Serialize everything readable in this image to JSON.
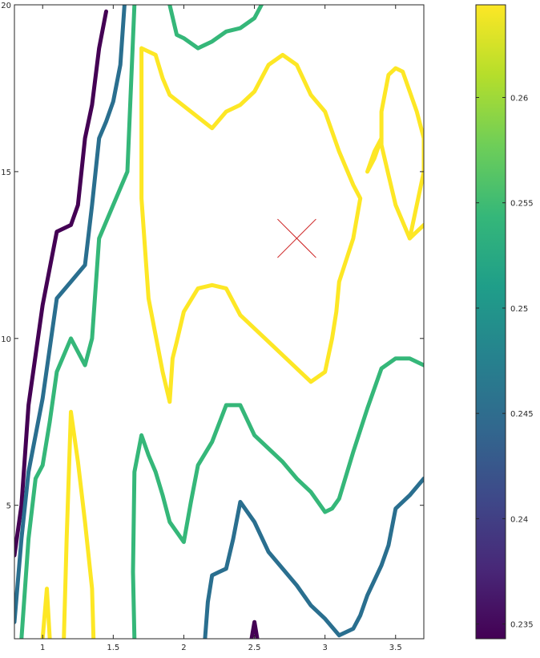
{
  "colors": {
    "c0235": "#440154",
    "c0245": "#2a6f8f",
    "c0255": "#35b779",
    "c0265": "#fde725",
    "marker": "#cc1f1f"
  },
  "chart_data": {
    "type": "contour",
    "xlim": [
      0.8,
      3.7
    ],
    "ylim": [
      1,
      20
    ],
    "xticks": [
      "1",
      "1.5",
      "2",
      "2.5",
      "3",
      "3.5"
    ],
    "xtick_values": [
      1,
      1.5,
      2,
      2.5,
      3,
      3.5
    ],
    "yticks": [
      "5",
      "10",
      "15",
      "20"
    ],
    "ytick_values": [
      5,
      10,
      15,
      20
    ],
    "grid": false,
    "colorbar": {
      "range": [
        0.2343,
        0.2644
      ],
      "tick_values": [
        0.235,
        0.24,
        0.245,
        0.25,
        0.255,
        0.26
      ],
      "tick_labels": [
        "0.235",
        "0.24",
        "0.245",
        "0.25",
        "0.255",
        "0.26"
      ],
      "colormap": "viridis"
    },
    "marker": {
      "x": 2.8,
      "y": 13,
      "symbol": "x"
    },
    "contours": [
      {
        "level": 0.235,
        "color": "#440154",
        "paths": [
          [
            [
              0.8,
              3.5
            ],
            [
              0.85,
              5
            ],
            [
              0.9,
              8
            ],
            [
              0.95,
              9.5
            ],
            [
              1,
              11
            ],
            [
              1.1,
              13.2
            ],
            [
              1.2,
              13.4
            ],
            [
              1.25,
              14
            ],
            [
              1.3,
              16
            ],
            [
              1.35,
              17
            ],
            [
              1.4,
              18.7
            ],
            [
              1.45,
              19.8
            ]
          ],
          [
            [
              2.48,
              1
            ],
            [
              2.5,
              1.5
            ],
            [
              2.52,
              1
            ]
          ]
        ]
      },
      {
        "level": 0.245,
        "color": "#2a6f8f",
        "paths": [
          [
            [
              0.8,
              1.5
            ],
            [
              0.85,
              4
            ],
            [
              0.9,
              6
            ],
            [
              1,
              8.2
            ],
            [
              1.1,
              11.2
            ],
            [
              1.2,
              11.7
            ],
            [
              1.3,
              12.2
            ],
            [
              1.35,
              14
            ],
            [
              1.4,
              16
            ],
            [
              1.45,
              16.5
            ],
            [
              1.5,
              17.1
            ],
            [
              1.55,
              18.2
            ],
            [
              1.58,
              20
            ]
          ],
          [
            [
              2.15,
              1
            ],
            [
              2.17,
              2.1
            ],
            [
              2.2,
              2.9
            ],
            [
              2.25,
              3
            ],
            [
              2.3,
              3.1
            ],
            [
              2.35,
              4
            ],
            [
              2.4,
              5.1
            ],
            [
              2.5,
              4.5
            ],
            [
              2.6,
              3.6
            ],
            [
              2.8,
              2.6
            ],
            [
              2.9,
              2
            ],
            [
              3,
              1.6
            ],
            [
              3.1,
              1.1
            ],
            [
              3.2,
              1.3
            ],
            [
              3.25,
              1.7
            ],
            [
              3.3,
              2.3
            ],
            [
              3.4,
              3.2
            ],
            [
              3.45,
              3.8
            ],
            [
              3.5,
              4.9
            ],
            [
              3.6,
              5.3
            ],
            [
              3.7,
              5.8
            ]
          ]
        ]
      },
      {
        "level": 0.255,
        "color": "#35b779",
        "paths": [
          [
            [
              0.85,
              1
            ],
            [
              0.9,
              4
            ],
            [
              0.95,
              5.8
            ],
            [
              1,
              6.2
            ],
            [
              1.05,
              7.5
            ],
            [
              1.1,
              9
            ],
            [
              1.2,
              10
            ],
            [
              1.3,
              9.2
            ],
            [
              1.35,
              10
            ],
            [
              1.4,
              13
            ],
            [
              1.5,
              14
            ],
            [
              1.6,
              15
            ],
            [
              1.62,
              17
            ],
            [
              1.65,
              20
            ]
          ],
          [
            [
              1.65,
              1
            ],
            [
              1.64,
              3
            ],
            [
              1.65,
              6
            ],
            [
              1.7,
              7.1
            ],
            [
              1.75,
              6.5
            ],
            [
              1.8,
              6
            ],
            [
              1.85,
              5.3
            ],
            [
              1.9,
              4.5
            ],
            [
              2,
              3.9
            ],
            [
              2.05,
              5.1
            ],
            [
              2.1,
              6.2
            ],
            [
              2.2,
              6.9
            ],
            [
              2.3,
              8
            ],
            [
              2.4,
              8
            ],
            [
              2.5,
              7.1
            ],
            [
              2.6,
              6.7
            ],
            [
              2.7,
              6.3
            ],
            [
              2.8,
              5.8
            ],
            [
              2.9,
              5.4
            ],
            [
              3,
              4.8
            ],
            [
              3.05,
              4.9
            ],
            [
              3.1,
              5.2
            ],
            [
              3.2,
              6.6
            ],
            [
              3.3,
              7.9
            ],
            [
              3.4,
              9.1
            ],
            [
              3.5,
              9.4
            ],
            [
              3.6,
              9.4
            ],
            [
              3.7,
              9.2
            ]
          ],
          [
            [
              1.9,
              20
            ],
            [
              1.95,
              19.1
            ],
            [
              2,
              19
            ],
            [
              2.1,
              18.7
            ],
            [
              2.2,
              18.9
            ],
            [
              2.3,
              19.2
            ],
            [
              2.4,
              19.3
            ],
            [
              2.5,
              19.6
            ],
            [
              2.55,
              20
            ]
          ]
        ]
      },
      {
        "level": 0.265,
        "color": "#fde725",
        "paths": [
          [
            [
              1,
              1
            ],
            [
              1.03,
              2.5
            ],
            [
              1.05,
              1
            ]
          ],
          [
            [
              1.15,
              1
            ],
            [
              1.17,
              4
            ],
            [
              1.2,
              7.8
            ],
            [
              1.25,
              6.3
            ],
            [
              1.3,
              4.5
            ],
            [
              1.35,
              2.5
            ],
            [
              1.36,
              1
            ]
          ],
          [
            [
              1.7,
              18.7
            ],
            [
              1.8,
              18.5
            ],
            [
              1.85,
              17.8
            ],
            [
              1.9,
              17.3
            ],
            [
              2.2,
              16.3
            ],
            [
              2.3,
              16.8
            ],
            [
              2.4,
              17
            ],
            [
              2.5,
              17.4
            ],
            [
              2.6,
              18.2
            ],
            [
              2.7,
              18.5
            ],
            [
              2.8,
              18.2
            ],
            [
              2.9,
              17.3
            ],
            [
              3,
              16.8
            ],
            [
              3.1,
              15.6
            ],
            [
              3.2,
              14.6
            ],
            [
              3.25,
              14.2
            ],
            [
              3.2,
              13
            ],
            [
              3.1,
              11.7
            ],
            [
              3.08,
              10.8
            ],
            [
              3.05,
              10
            ],
            [
              3,
              9
            ],
            [
              2.9,
              8.7
            ],
            [
              2.8,
              9.1
            ],
            [
              2.6,
              9.9
            ],
            [
              2.4,
              10.7
            ],
            [
              2.3,
              11.5
            ],
            [
              2.2,
              11.6
            ],
            [
              2.1,
              11.5
            ],
            [
              2,
              10.8
            ],
            [
              1.95,
              9.9
            ],
            [
              1.92,
              9.4
            ],
            [
              1.9,
              8.1
            ],
            [
              1.85,
              9
            ],
            [
              1.8,
              10.1
            ],
            [
              1.75,
              11.2
            ],
            [
              1.7,
              14.2
            ],
            [
              1.7,
              16
            ],
            [
              1.7,
              18.7
            ]
          ],
          [
            [
              3.3,
              15
            ],
            [
              3.35,
              15.4
            ],
            [
              3.4,
              16
            ],
            [
              3.35,
              15.6
            ],
            [
              3.3,
              15
            ]
          ],
          [
            [
              3.7,
              15
            ],
            [
              3.6,
              13
            ],
            [
              3.65,
              13.2
            ],
            [
              3.7,
              13.4
            ]
          ],
          [
            [
              3.7,
              15
            ],
            [
              3.7,
              16
            ],
            [
              3.65,
              16.8
            ],
            [
              3.6,
              17.4
            ],
            [
              3.55,
              18
            ],
            [
              3.5,
              18.1
            ],
            [
              3.45,
              17.9
            ],
            [
              3.4,
              16.8
            ],
            [
              3.4,
              15.8
            ],
            [
              3.45,
              14.9
            ],
            [
              3.5,
              14
            ],
            [
              3.6,
              13
            ]
          ]
        ]
      }
    ]
  }
}
